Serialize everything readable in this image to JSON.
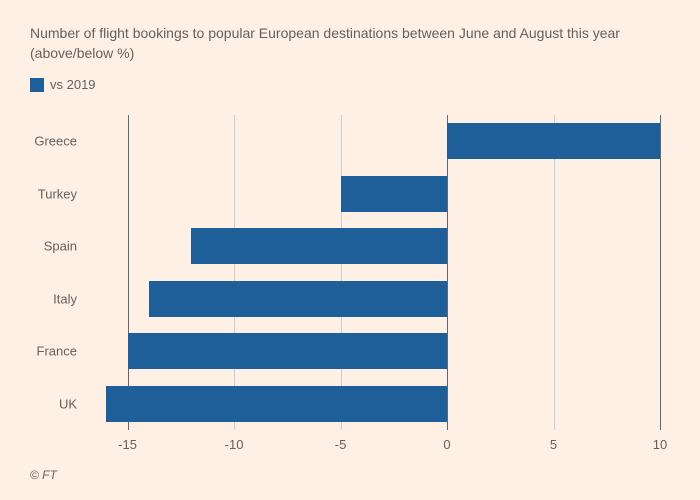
{
  "title": "Number of flight bookings to popular European destinations between June and August this year (above/below %)",
  "legend": {
    "label": "vs 2019"
  },
  "chart": {
    "type": "bar",
    "orientation": "horizontal",
    "xlim": [
      -17,
      10
    ],
    "xticks": [
      -15,
      -10,
      -5,
      0,
      5,
      10
    ],
    "categories": [
      "Greece",
      "Turkey",
      "Spain",
      "Italy",
      "France",
      "UK"
    ],
    "values": [
      10,
      -5,
      -12,
      -14,
      -15,
      -16
    ],
    "bar_color": "#1f5f99",
    "grid_color": "#c9cfd6",
    "grid_color_major": "#5e6873",
    "zero_line_highlight": true,
    "background_color": "#fff0e5",
    "text_color": "#66605c",
    "bar_width_ratio": 0.68,
    "title_fontsize": 14,
    "label_fontsize": 13,
    "aspect_w": 700,
    "aspect_h": 500
  },
  "source": "© FT"
}
